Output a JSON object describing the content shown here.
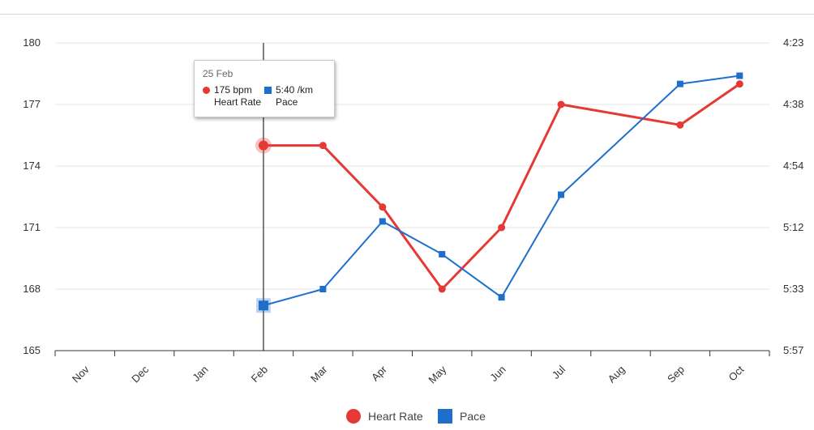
{
  "chart_data": {
    "type": "line",
    "categories": [
      "Nov",
      "Dec",
      "Jan",
      "Feb",
      "Mar",
      "Apr",
      "May",
      "Jun",
      "Jul",
      "Aug",
      "Sep",
      "Oct"
    ],
    "y_left": {
      "ticks": [
        "180",
        "177",
        "174",
        "171",
        "168",
        "165"
      ],
      "range": [
        165,
        180
      ]
    },
    "y_right": {
      "ticks": [
        "4:23",
        "4:38",
        "4:54",
        "5:12",
        "5:33",
        "5:57"
      ]
    },
    "series": [
      {
        "name": "Heart Rate",
        "axis": "left",
        "color": "#e53935",
        "marker": "circle",
        "points": [
          {
            "x": "25 Feb",
            "cat": 3.5,
            "y": 175
          },
          {
            "x": "Mar",
            "cat": 4.5,
            "y": 175
          },
          {
            "x": "Apr",
            "cat": 5.5,
            "y": 172
          },
          {
            "x": "May",
            "cat": 6.5,
            "y": 168
          },
          {
            "x": "Jun",
            "cat": 7.5,
            "y": 171
          },
          {
            "x": "Jul",
            "cat": 8.5,
            "y": 177
          },
          {
            "x": "Sep",
            "cat": 10.5,
            "y": 176
          },
          {
            "x": "Oct",
            "cat": 11.5,
            "y": 178
          }
        ]
      },
      {
        "name": "Pace",
        "axis": "right",
        "color": "#1e6fcc",
        "marker": "square",
        "points": [
          {
            "x": "25 Feb",
            "cat": 3.5,
            "y": 167.2
          },
          {
            "x": "Mar",
            "cat": 4.5,
            "y": 168.0
          },
          {
            "x": "Apr",
            "cat": 5.5,
            "y": 171.3
          },
          {
            "x": "May",
            "cat": 6.5,
            "y": 169.7
          },
          {
            "x": "Jun",
            "cat": 7.5,
            "y": 167.6
          },
          {
            "x": "Jul",
            "cat": 8.5,
            "y": 172.6
          },
          {
            "x": "Sep",
            "cat": 10.5,
            "y": 178.0
          },
          {
            "x": "Oct",
            "cat": 11.5,
            "y": 178.4
          }
        ]
      }
    ],
    "legend": {
      "position": "bottom",
      "items": [
        "Heart Rate",
        "Pace"
      ]
    },
    "grid": true,
    "crosshair_at": "Feb"
  },
  "tooltip": {
    "date": "25 Feb",
    "hr_value": "175 bpm",
    "hr_label": "Heart Rate",
    "pace_value": "5:40 /km",
    "pace_label": "Pace"
  }
}
